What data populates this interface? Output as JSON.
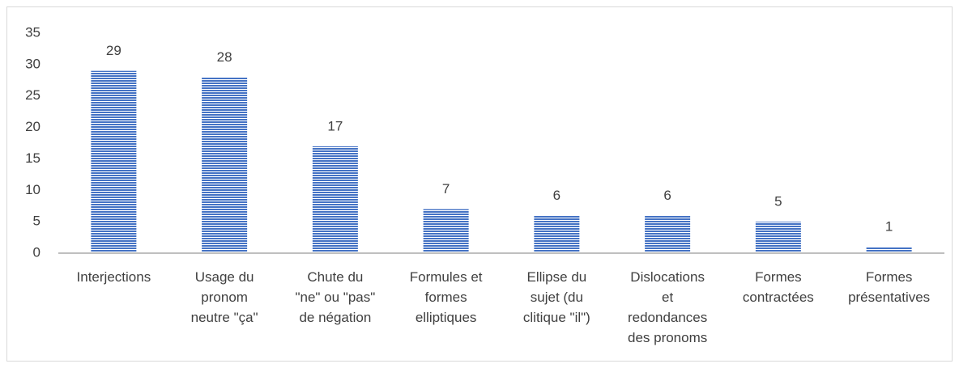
{
  "chart_data": {
    "type": "bar",
    "categories": [
      "Interjections",
      "Usage du\npronom\nneutre \"ça\"",
      "Chute du\n\"ne\" ou \"pas\"\nde négation",
      "Formules et\nformes\nelliptiques",
      "Ellipse du\nsujet (du\nclitique \"il\")",
      "Dislocations\net\nredondances\ndes pronoms",
      "Formes\ncontractées",
      "Formes\nprésentatives"
    ],
    "values": [
      29,
      28,
      17,
      7,
      6,
      6,
      5,
      1
    ],
    "color": "#4472c4",
    "ylim": [
      0,
      35
    ],
    "yticks": [
      0,
      5,
      10,
      15,
      20,
      25,
      30,
      35
    ],
    "grid": false
  }
}
